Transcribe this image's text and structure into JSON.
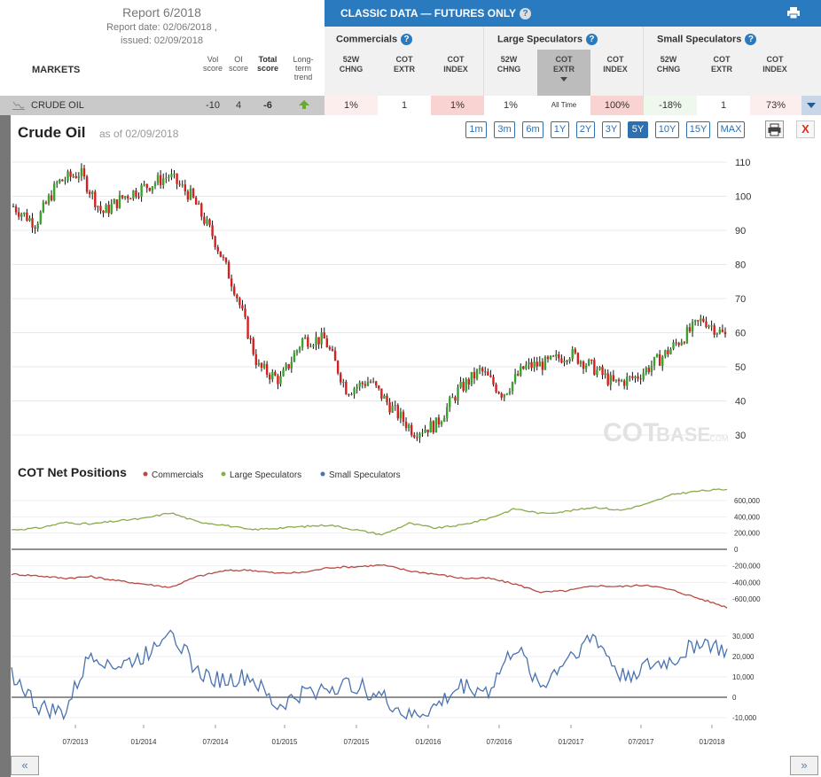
{
  "report": {
    "title": "Report 6/2018",
    "date": "Report date: 02/06/2018 ,",
    "issued": "issued: 02/09/2018"
  },
  "columns": {
    "markets": "MARKETS",
    "vol": [
      "Vol",
      "score"
    ],
    "oi": [
      "OI",
      "score"
    ],
    "total": [
      "Total",
      "score"
    ],
    "trend": [
      "Long-",
      "term",
      "trend"
    ]
  },
  "classic": {
    "title": "CLASSIC DATA — FUTURES ONLY",
    "help": "?",
    "groups": [
      {
        "title": "Commercials",
        "subs": [
          [
            "52W",
            "CHNG"
          ],
          [
            "COT",
            "EXTR"
          ],
          [
            "COT",
            "INDEX"
          ]
        ]
      },
      {
        "title": "Large Speculators",
        "subs": [
          [
            "52W",
            "CHNG"
          ],
          [
            "COT",
            "EXTR"
          ],
          [
            "COT",
            "INDEX"
          ]
        ]
      },
      {
        "title": "Small Speculators",
        "subs": [
          [
            "52W",
            "CHNG"
          ],
          [
            "COT",
            "EXTR"
          ],
          [
            "COT",
            "INDEX"
          ]
        ]
      }
    ]
  },
  "row": {
    "name": "CRUDE OIL",
    "vol": "-10",
    "oi": "4",
    "total": "-6",
    "trend": "up",
    "cells": [
      "1%",
      "1",
      "1%",
      "1%",
      "All Time",
      "100%",
      "-18%",
      "1",
      "73%"
    ],
    "cell_colors": [
      "#fdeeee",
      "#ffffff",
      "#f9d2d2",
      "#ffffff",
      "#ffffff",
      "#f9d2d2",
      "#eef8ec",
      "#ffffff",
      "#fdeeee"
    ]
  },
  "chart": {
    "title": "Crude Oil",
    "asof": "as of 02/09/2018",
    "ranges": [
      "1m",
      "3m",
      "6m",
      "1Y",
      "2Y",
      "3Y",
      "5Y",
      "10Y",
      "15Y",
      "MAX"
    ],
    "active_range": "5Y",
    "close": "X",
    "watermark": "COTBASE.COM"
  },
  "cot_title": "COT Net Positions",
  "nav": {
    "prev": "«",
    "next": "»"
  },
  "chart_data": [
    {
      "type": "candlestick",
      "title": "Crude Oil",
      "ylim": [
        26,
        113
      ],
      "yticks": [
        30,
        40,
        50,
        60,
        70,
        80,
        90,
        100,
        110
      ],
      "x": [
        "2013-02",
        "2013-05",
        "2013-07",
        "2013-09",
        "2013-12",
        "2014-02",
        "2014-04",
        "2014-06",
        "2014-08",
        "2014-10",
        "2014-12",
        "2015-01",
        "2015-03",
        "2015-05",
        "2015-07",
        "2015-08",
        "2015-10",
        "2015-12",
        "2016-01",
        "2016-02",
        "2016-04",
        "2016-06",
        "2016-08",
        "2016-10",
        "2016-12",
        "2017-02",
        "2017-04",
        "2017-06",
        "2017-08",
        "2017-10",
        "2017-12",
        "2018-01",
        "2018-02"
      ],
      "close": [
        97,
        92,
        104,
        107,
        95,
        100,
        103,
        106,
        100,
        88,
        72,
        50,
        46,
        58,
        58,
        43,
        46,
        38,
        31,
        33,
        43,
        49,
        42,
        50,
        51,
        54,
        50,
        45,
        47,
        52,
        58,
        64,
        59
      ]
    },
    {
      "type": "line",
      "title": "COT Net Positions",
      "legend": [
        "Commercials",
        "Large Speculators",
        "Small Speculators"
      ],
      "colors": {
        "Commercials": "#b84a43",
        "Large Speculators": "#8aaa4b",
        "Small Speculators": "#4a72b0"
      },
      "x_ticks": [
        "07/2013",
        "01/2014",
        "07/2014",
        "01/2015",
        "07/2015",
        "01/2016",
        "07/2016",
        "01/2017",
        "07/2017",
        "01/2018"
      ],
      "series": [
        {
          "name": "Large Speculators",
          "values": [
            240000,
            260000,
            330000,
            310000,
            350000,
            380000,
            450000,
            340000,
            300000,
            240000,
            260000,
            280000,
            300000,
            240000,
            180000,
            320000,
            260000,
            300000,
            380000,
            500000,
            440000,
            470000,
            520000,
            480000,
            560000,
            680000,
            720000,
            740000
          ]
        },
        {
          "name": "Commercials",
          "values": [
            -300000,
            -320000,
            -350000,
            -330000,
            -380000,
            -420000,
            -460000,
            -330000,
            -260000,
            -250000,
            -290000,
            -280000,
            -220000,
            -210000,
            -190000,
            -260000,
            -300000,
            -350000,
            -350000,
            -420000,
            -520000,
            -500000,
            -440000,
            -450000,
            -430000,
            -500000,
            -600000,
            -700000
          ]
        },
        {
          "name": "Small Speculators",
          "values": [
            12000,
            -5000,
            -8000,
            22000,
            15000,
            20000,
            35000,
            12000,
            8000,
            10000,
            -5000,
            2000,
            5000,
            6000,
            0,
            -10000,
            -5000,
            6000,
            3000,
            25000,
            5000,
            20000,
            30000,
            10000,
            15000,
            18000,
            28000,
            22000
          ]
        }
      ],
      "yticks_large": [
        "600,000",
        "400,000",
        "200,000",
        "0"
      ],
      "yticks_comm": [
        "-200,000",
        "-400,000",
        "-600,000"
      ],
      "yticks_small": [
        "30,000",
        "20,000",
        "10,000",
        "0",
        "-10,000"
      ]
    }
  ]
}
